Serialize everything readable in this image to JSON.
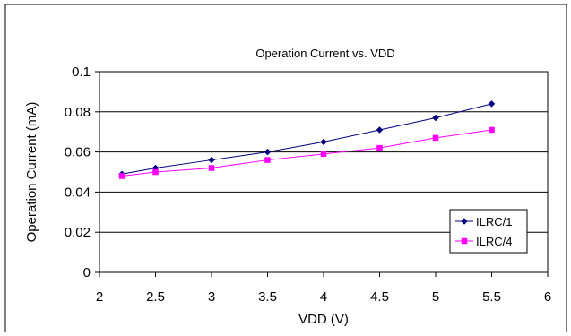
{
  "chart_data": {
    "type": "line",
    "title": "Operation Current vs. VDD",
    "xlabel": "VDD (V)",
    "ylabel": "Operation Current (mA)",
    "x": [
      2.2,
      2.5,
      3,
      3.5,
      4,
      4.5,
      5,
      5.5
    ],
    "xlim": [
      2,
      6
    ],
    "ylim": [
      0,
      0.1
    ],
    "xticks": [
      2,
      2.5,
      3,
      3.5,
      4,
      4.5,
      5,
      5.5,
      6
    ],
    "xtick_labels": [
      "2",
      "2.5",
      "3",
      "3.5",
      "4",
      "4.5",
      "5",
      "5.5",
      "6"
    ],
    "yticks": [
      0,
      0.02,
      0.04,
      0.06,
      0.08,
      0.1
    ],
    "ytick_labels": [
      "0",
      "0.02",
      "0.04",
      "0.06",
      "0.08",
      "0.1"
    ],
    "grid": "horizontal",
    "legend_position": "bottom-right",
    "series": [
      {
        "name": "ILRC/1",
        "color": "#000080",
        "marker": "diamond",
        "values": [
          0.049,
          0.052,
          0.056,
          0.06,
          0.065,
          0.071,
          0.077,
          0.084
        ]
      },
      {
        "name": "ILRC/4",
        "color": "#ff00ff",
        "marker": "square",
        "values": [
          0.048,
          0.05,
          0.052,
          0.056,
          0.059,
          0.062,
          0.067,
          0.071
        ]
      }
    ]
  }
}
